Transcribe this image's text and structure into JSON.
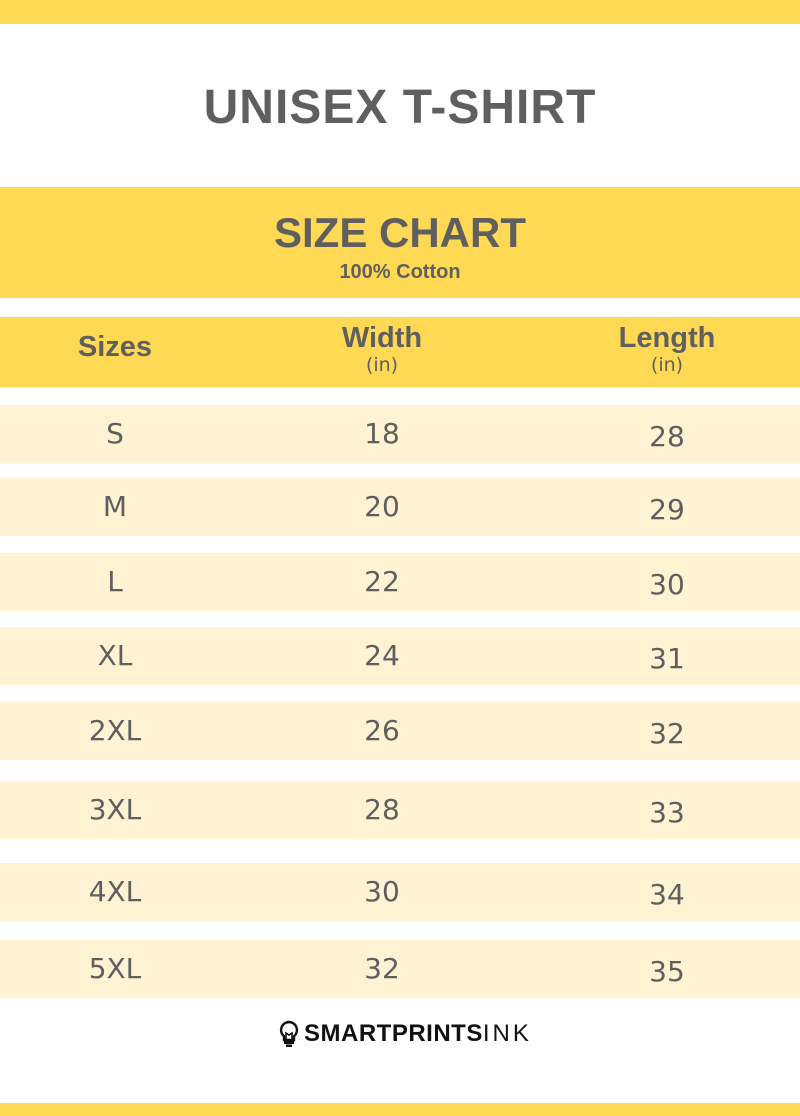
{
  "colors": {
    "accent": "#ffd954",
    "row_bg": "#fff3d3",
    "text": "#5f5f5f"
  },
  "title": "UNISEX T-SHIRT",
  "band": {
    "heading": "SIZE CHART",
    "subheading": "100% Cotton"
  },
  "table": {
    "headers": [
      {
        "label": "Sizes",
        "unit": ""
      },
      {
        "label": "Width",
        "unit": "(in)"
      },
      {
        "label": "Length",
        "unit": "(in)"
      }
    ],
    "rows": [
      {
        "size": "S",
        "width": "18",
        "length": "28"
      },
      {
        "size": "M",
        "width": "20",
        "length": "29"
      },
      {
        "size": "L",
        "width": "22",
        "length": "30"
      },
      {
        "size": "XL",
        "width": "24",
        "length": "31"
      },
      {
        "size": "2XL",
        "width": "26",
        "length": "32"
      },
      {
        "size": "3XL",
        "width": "28",
        "length": "33"
      },
      {
        "size": "4XL",
        "width": "30",
        "length": "34"
      },
      {
        "size": "5XL",
        "width": "32",
        "length": "35"
      }
    ]
  },
  "logo": {
    "bold": "SMARTPRINTS",
    "light": "INK",
    "icon": "lightbulb-icon"
  }
}
